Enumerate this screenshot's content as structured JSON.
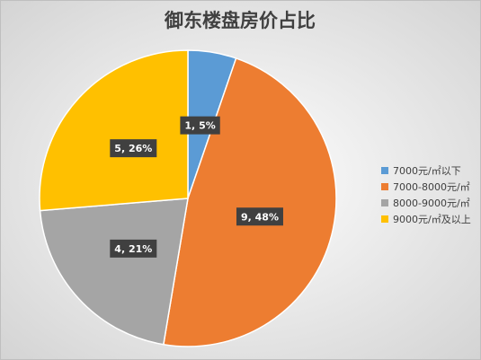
{
  "chart_data": {
    "type": "pie",
    "title": "御东楼盘房价占比",
    "categories": [
      "7000元/㎡以下",
      "7000-8000元/㎡",
      "8000-9000元/㎡",
      "9000元/㎡及以上"
    ],
    "values": [
      1,
      9,
      4,
      5
    ],
    "value_labels": [
      "1, 5%",
      "9, 48%",
      "4, 21%",
      "5, 26%"
    ],
    "colors": [
      "#5b9bd5",
      "#ed7d31",
      "#a5a5a5",
      "#ffc000"
    ],
    "legend": "right"
  }
}
